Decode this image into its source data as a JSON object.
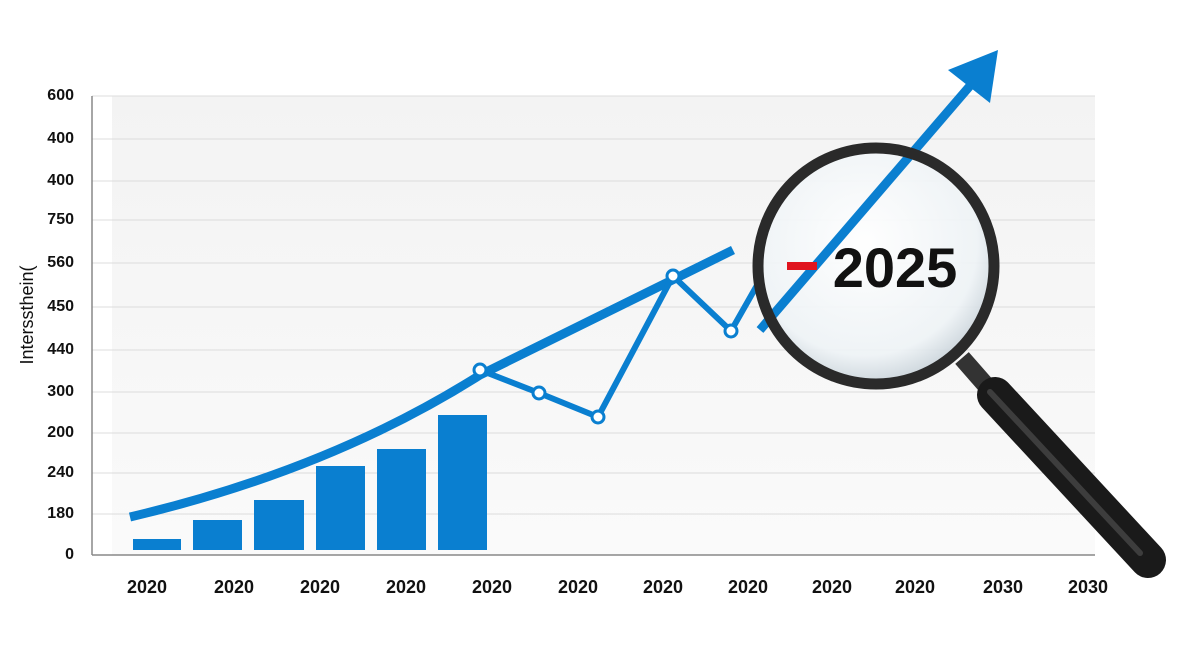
{
  "axis_title": "Interssthein(",
  "y_labels": [
    "600",
    "400",
    "400",
    "750",
    "560",
    "450",
    "440",
    "300",
    "200",
    "240",
    "180",
    "0"
  ],
  "x_labels": [
    "2020",
    "2020",
    "2020",
    "2020",
    "2020",
    "2020",
    "2020",
    "2020",
    "2020",
    "2020",
    "2030",
    "2030"
  ],
  "magnifier_text": "2025"
}
